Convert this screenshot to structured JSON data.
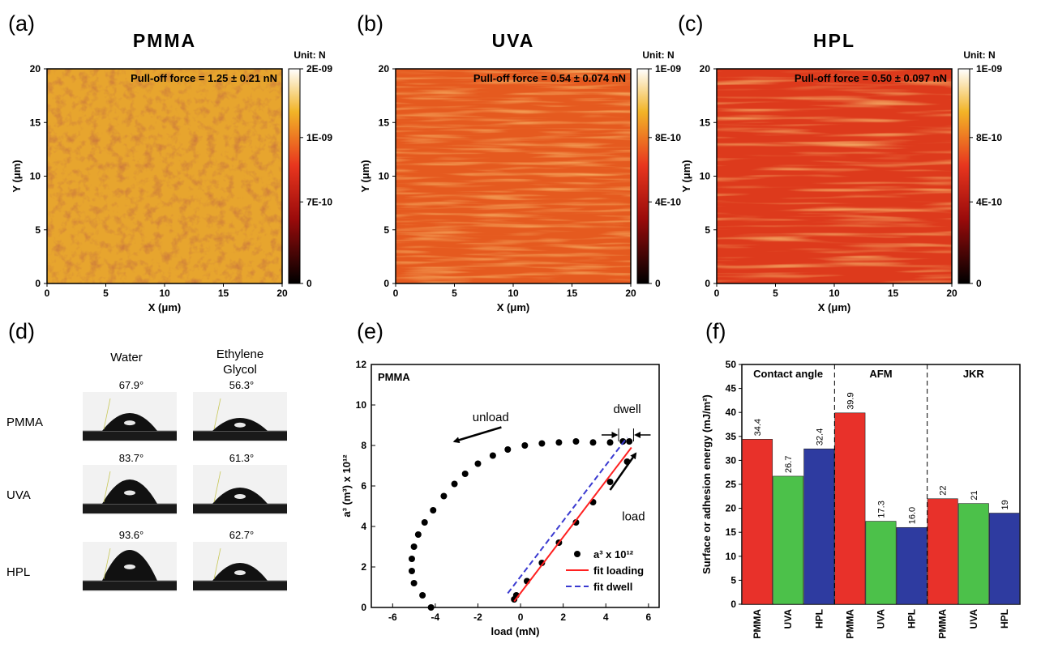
{
  "panels": {
    "a": "(a)",
    "b": "(b)",
    "c": "(c)",
    "d": "(d)",
    "e": "(e)",
    "f": "(f)"
  },
  "maps": [
    {
      "id": "a",
      "title": "PMMA",
      "annotation": "Pull-off force = 1.25 ± 0.21 nN",
      "unit": "Unit: N",
      "colorbar_ticks": [
        "2E-09",
        "1E-09",
        "7E-10",
        "0"
      ],
      "base_color": "#e7a52e",
      "texture": "mottled",
      "x_ticks": [
        "0",
        "5",
        "10",
        "15",
        "20"
      ],
      "y_ticks": [
        "0",
        "5",
        "10",
        "15",
        "20"
      ],
      "xlabel": "X (μm)",
      "ylabel": "Y (μm)"
    },
    {
      "id": "b",
      "title": "UVA",
      "annotation": "Pull-off force = 0.54 ± 0.074 nN",
      "unit": "Unit: N",
      "colorbar_ticks": [
        "1E-09",
        "8E-10",
        "4E-10",
        "0"
      ],
      "base_color": "#e55a1f",
      "texture": "streaked",
      "x_ticks": [
        "0",
        "5",
        "10",
        "15",
        "20"
      ],
      "y_ticks": [
        "0",
        "5",
        "10",
        "15",
        "20"
      ],
      "xlabel": "X (μm)",
      "ylabel": "Y (μm)"
    },
    {
      "id": "c",
      "title": "HPL",
      "annotation": "Pull-off force = 0.50 ± 0.097 nN",
      "unit": "Unit: N",
      "colorbar_ticks": [
        "1E-09",
        "8E-10",
        "4E-10",
        "0"
      ],
      "base_color": "#dd3a1c",
      "texture": "banded",
      "x_ticks": [
        "0",
        "5",
        "10",
        "15",
        "20"
      ],
      "y_ticks": [
        "0",
        "5",
        "10",
        "15",
        "20"
      ],
      "xlabel": "X (μm)",
      "ylabel": "Y (μm)"
    }
  ],
  "droplets": {
    "columns": [
      "Water",
      "Ethylene",
      "Glycol"
    ],
    "rows": [
      {
        "label": "PMMA",
        "water": "67.9°",
        "glycol": "56.3°"
      },
      {
        "label": "UVA",
        "water": "83.7°",
        "glycol": "61.3°"
      },
      {
        "label": "HPL",
        "water": "93.6°",
        "glycol": "62.7°"
      }
    ]
  },
  "chart_data": [
    {
      "type": "scatter",
      "panel": "e",
      "label": "PMMA",
      "xlabel": "load (mN)",
      "ylabel": "a³ (m³) x 10¹²",
      "xlim": [
        -7,
        6.5
      ],
      "ylim": [
        0,
        12
      ],
      "x_ticks": [
        -6,
        -4,
        -2,
        0,
        2,
        4,
        6
      ],
      "y_ticks": [
        0,
        2,
        4,
        6,
        8,
        10,
        12
      ],
      "annotations": {
        "unload": "unload",
        "load": "load",
        "dwell": "dwell"
      },
      "legend": {
        "position": "bottom-right",
        "entries": [
          {
            "name": "a³ x 10¹²",
            "style": "marker",
            "color": "#000000"
          },
          {
            "name": "fit loading",
            "style": "solid",
            "color": "#ff2020"
          },
          {
            "name": "fit dwell",
            "style": "dashed",
            "color": "#3a3ad0"
          }
        ]
      },
      "series": [
        {
          "name": "a³ x 10¹²",
          "points": [
            [
              -4.2,
              0.0
            ],
            [
              -4.6,
              0.6
            ],
            [
              -5.0,
              1.2
            ],
            [
              -5.1,
              1.8
            ],
            [
              -5.1,
              2.4
            ],
            [
              -5.0,
              3.0
            ],
            [
              -4.8,
              3.6
            ],
            [
              -4.5,
              4.2
            ],
            [
              -4.1,
              4.8
            ],
            [
              -3.6,
              5.5
            ],
            [
              -3.1,
              6.1
            ],
            [
              -2.6,
              6.6
            ],
            [
              -2.0,
              7.1
            ],
            [
              -1.3,
              7.5
            ],
            [
              -0.6,
              7.8
            ],
            [
              0.2,
              8.0
            ],
            [
              1.0,
              8.1
            ],
            [
              1.8,
              8.15
            ],
            [
              2.6,
              8.2
            ],
            [
              3.4,
              8.15
            ],
            [
              4.2,
              8.15
            ],
            [
              4.8,
              8.2
            ],
            [
              5.1,
              8.2
            ],
            [
              5.0,
              7.2
            ],
            [
              4.2,
              6.2
            ],
            [
              3.4,
              5.2
            ],
            [
              2.6,
              4.2
            ],
            [
              1.8,
              3.2
            ],
            [
              1.0,
              2.2
            ],
            [
              0.3,
              1.3
            ],
            [
              -0.2,
              0.6
            ],
            [
              -0.3,
              0.4
            ]
          ]
        },
        {
          "name": "fit loading",
          "points": [
            [
              -0.3,
              0.3
            ],
            [
              5.2,
              7.9
            ]
          ]
        },
        {
          "name": "fit dwell",
          "points": [
            [
              -0.6,
              0.7
            ],
            [
              5.0,
              8.4
            ]
          ]
        }
      ]
    },
    {
      "type": "bar",
      "panel": "f",
      "ylabel": "Surface or adhesion energy (mJ/m²)",
      "ylim": [
        0,
        50
      ],
      "y_ticks": [
        0,
        5,
        10,
        15,
        20,
        25,
        30,
        35,
        40,
        45,
        50
      ],
      "group_labels": [
        "Contact angle",
        "AFM",
        "JKR"
      ],
      "categories": [
        "PMMA",
        "UVA",
        "HPL",
        "PMMA",
        "UVA",
        "HPL",
        "PMMA",
        "UVA",
        "HPL"
      ],
      "values": [
        34.4,
        26.7,
        32.4,
        39.9,
        17.3,
        16.0,
        22,
        21,
        19
      ],
      "value_labels": [
        "34.4",
        "26.7",
        "32.4",
        "39.9",
        "17.3",
        "16.0",
        "22",
        "21",
        "19"
      ],
      "colors": [
        "#e8312a",
        "#4cc14a",
        "#2e3ba0",
        "#e8312a",
        "#4cc14a",
        "#2e3ba0",
        "#e8312a",
        "#4cc14a",
        "#2e3ba0"
      ]
    }
  ]
}
